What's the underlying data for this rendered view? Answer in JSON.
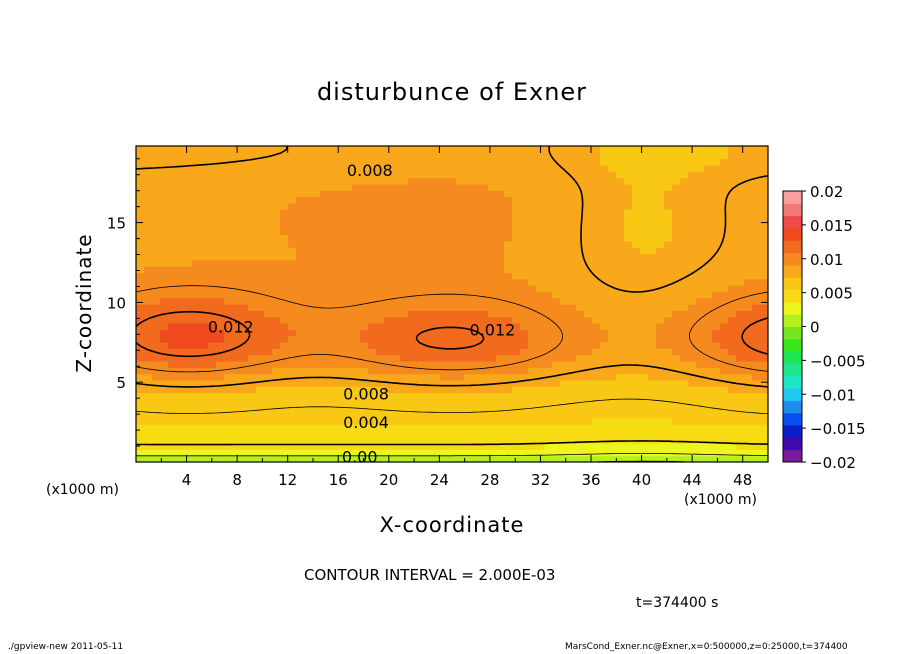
{
  "chart_data": {
    "type": "heatmap",
    "title": "disturbunce of Exner",
    "xlabel": "X-coordinate",
    "ylabel": "Z-coordinate",
    "x_unit": "(x1000 m)",
    "xlim": [
      0,
      50
    ],
    "ylim": [
      0,
      19.8
    ],
    "x_ticks": [
      4,
      8,
      12,
      16,
      20,
      24,
      28,
      32,
      36,
      40,
      44,
      48
    ],
    "y_ticks": [
      5,
      10,
      15
    ],
    "contour_labels": [
      {
        "text": "0.008",
        "x": 18.5,
        "z": 18.3
      },
      {
        "text": "0.012",
        "x": 7.5,
        "z": 8.5
      },
      {
        "text": "0.012",
        "x": 28.2,
        "z": 8.3
      },
      {
        "text": "0.008",
        "x": 18.2,
        "z": 4.3
      },
      {
        "text": "0.004",
        "x": 18.2,
        "z": 2.5
      },
      {
        "text": "0.00",
        "x": 17.7,
        "z": 0.35
      }
    ],
    "colorbar": {
      "min": -0.02,
      "max": 0.02,
      "ticks": [
        "0.02",
        "0.015",
        "0.01",
        "0.005",
        "0",
        "−0.005",
        "−0.01",
        "−0.015",
        "−0.02"
      ],
      "colors": [
        "#7b1a9c",
        "#3f0aa8",
        "#0a1ec8",
        "#0a50ee",
        "#1f8cf0",
        "#1ec8f0",
        "#1ee6c8",
        "#1ee68c",
        "#1ee650",
        "#3ce61e",
        "#78e61e",
        "#b4f01e",
        "#eef51e",
        "#f7dc14",
        "#f9c814",
        "#f8a81a",
        "#f58a1e",
        "#f26a1e",
        "#ef4a1e",
        "#f04a4a",
        "#f57878",
        "#f8a0a0"
      ]
    },
    "contour_interval": "CONTOUR INTERVAL = 2.000E-03",
    "time": "t=374400 s"
  },
  "footer": {
    "left": "./gpview-new   2011-05-11",
    "right": "MarsCond_Exner.nc@Exner,x=0:500000,z=0:25000,t=374400"
  }
}
